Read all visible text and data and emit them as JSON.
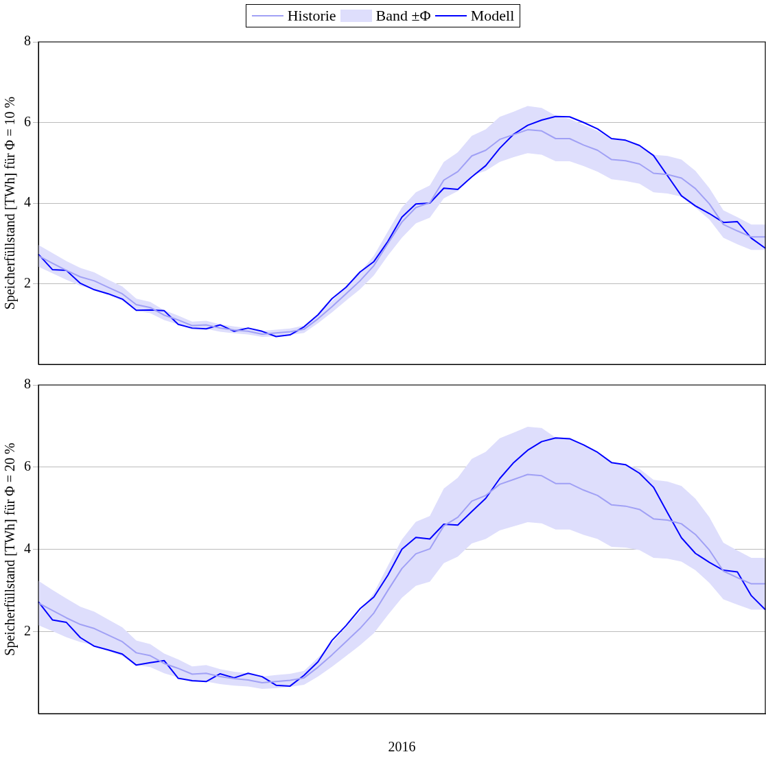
{
  "chart_data": [
    {
      "type": "line",
      "ylabel": "Speicherfüllstand [TWh] für Φ = 10 %",
      "legend": "top",
      "grid": "y",
      "tick_labels": "y",
      "ylim": [
        0,
        8
      ],
      "yticks": [
        2,
        4,
        6,
        8
      ],
      "categories": [
        null,
        null,
        null,
        null,
        null,
        null,
        null,
        null,
        null,
        null,
        null,
        null,
        null,
        null,
        null,
        null,
        null,
        null,
        null,
        null,
        null,
        null,
        null,
        null,
        null,
        null,
        null,
        null,
        null,
        null,
        null,
        null,
        null,
        null,
        null,
        null,
        null,
        null,
        null,
        null,
        null,
        null,
        null,
        null,
        null,
        null,
        null,
        null,
        null,
        null,
        null,
        null,
        null
      ],
      "series": [
        {
          "name": "Historie",
          "color": "#a0a0f5",
          "values": [
            2.69,
            2.51,
            2.33,
            2.17,
            2.07,
            1.91,
            1.75,
            1.48,
            1.41,
            1.22,
            1.1,
            0.96,
            0.98,
            0.9,
            0.85,
            0.82,
            0.75,
            0.78,
            0.81,
            0.87,
            1.13,
            1.43,
            1.75,
            2.07,
            2.45,
            3.0,
            3.53,
            3.89,
            4.01,
            4.57,
            4.78,
            5.17,
            5.31,
            5.58,
            5.7,
            5.82,
            5.79,
            5.6,
            5.6,
            5.44,
            5.31,
            5.08,
            5.05,
            4.97,
            4.74,
            4.71,
            4.62,
            4.36,
            3.98,
            3.47,
            3.31,
            3.16,
            3.16
          ]
        },
        {
          "name": "Band ±Φ",
          "type": "area",
          "color": "#dedefc",
          "values": [
            null,
            null,
            null,
            null,
            null,
            null,
            null,
            null,
            null,
            null,
            null,
            null,
            null,
            null,
            null,
            null,
            null,
            null,
            null,
            null,
            null,
            null,
            null,
            null,
            null,
            null,
            null,
            null,
            null,
            null,
            null,
            null,
            null,
            null,
            null,
            null,
            null,
            null,
            null,
            null,
            null,
            null,
            null,
            null,
            null,
            null,
            null,
            null,
            null,
            null,
            null,
            null,
            null
          ],
          "lower": [
            2.42,
            2.26,
            2.1,
            1.95,
            1.86,
            1.72,
            1.58,
            1.33,
            1.27,
            1.1,
            0.99,
            0.86,
            0.88,
            0.81,
            0.77,
            0.74,
            0.68,
            0.7,
            0.73,
            0.78,
            1.02,
            1.29,
            1.58,
            1.86,
            2.21,
            2.7,
            3.14,
            3.5,
            3.64,
            4.12,
            4.3,
            4.69,
            4.8,
            5.02,
            5.14,
            5.24,
            5.2,
            5.04,
            5.04,
            4.92,
            4.78,
            4.59,
            4.55,
            4.48,
            4.27,
            4.24,
            4.16,
            3.89,
            3.59,
            3.14,
            2.98,
            2.84,
            2.84
          ],
          "upper": [
            2.96,
            2.76,
            2.56,
            2.39,
            2.28,
            2.1,
            1.93,
            1.63,
            1.55,
            1.34,
            1.21,
            1.06,
            1.08,
            0.99,
            0.94,
            0.9,
            0.83,
            0.86,
            0.89,
            0.96,
            1.24,
            1.57,
            1.93,
            2.28,
            2.7,
            3.3,
            3.89,
            4.27,
            4.44,
            5.02,
            5.26,
            5.67,
            5.83,
            6.14,
            6.27,
            6.41,
            6.36,
            6.17,
            6.09,
            5.94,
            5.79,
            5.59,
            5.55,
            5.43,
            5.2,
            5.17,
            5.08,
            4.8,
            4.37,
            3.82,
            3.65,
            3.47,
            3.47
          ]
        },
        {
          "name": "Modell",
          "color": "#0000ff",
          "values": [
            2.73,
            2.35,
            2.33,
            2.01,
            1.85,
            1.75,
            1.62,
            1.34,
            1.35,
            1.33,
            0.99,
            0.9,
            0.88,
            0.98,
            0.82,
            0.9,
            0.82,
            0.69,
            0.73,
            0.93,
            1.23,
            1.63,
            1.91,
            2.29,
            2.55,
            3.05,
            3.65,
            3.98,
            4.0,
            4.37,
            4.34,
            4.65,
            4.93,
            5.36,
            5.71,
            5.93,
            6.06,
            6.15,
            6.14,
            6.0,
            5.84,
            5.6,
            5.56,
            5.43,
            5.18,
            4.68,
            4.18,
            3.93,
            3.74,
            3.52,
            3.54,
            3.13,
            2.88
          ]
        }
      ]
    },
    {
      "type": "line",
      "ylabel": "Speicherfüllstand [TWh] für Φ = 20 %",
      "xlabel": "2016",
      "grid": "y",
      "tick_labels": "y",
      "ylim": [
        0,
        8
      ],
      "yticks": [
        2,
        4,
        6,
        8
      ],
      "categories": [
        null,
        null,
        null,
        null,
        null,
        null,
        null,
        null,
        null,
        null,
        null,
        null,
        null,
        null,
        null,
        null,
        null,
        null,
        null,
        null,
        null,
        null,
        null,
        null,
        null,
        null,
        null,
        null,
        null,
        null,
        null,
        null,
        null,
        null,
        null,
        null,
        null,
        null,
        null,
        null,
        null,
        null,
        null,
        null,
        null,
        null,
        null,
        null,
        null,
        null,
        null,
        null,
        null
      ],
      "series": [
        {
          "color": "#a0a0f5",
          "values": [
            2.69,
            2.51,
            2.33,
            2.17,
            2.07,
            1.91,
            1.75,
            1.48,
            1.41,
            1.22,
            1.1,
            0.96,
            0.98,
            0.9,
            0.85,
            0.82,
            0.75,
            0.78,
            0.81,
            0.87,
            1.13,
            1.43,
            1.75,
            2.07,
            2.45,
            3.0,
            3.53,
            3.89,
            4.01,
            4.57,
            4.78,
            5.17,
            5.31,
            5.58,
            5.7,
            5.82,
            5.79,
            5.6,
            5.6,
            5.44,
            5.31,
            5.08,
            5.05,
            4.97,
            4.74,
            4.71,
            4.62,
            4.36,
            3.98,
            3.47,
            3.31,
            3.16,
            3.16
          ]
        },
        {
          "type": "area",
          "color": "#dedefc",
          "values": [
            null,
            null,
            null,
            null,
            null,
            null,
            null,
            null,
            null,
            null,
            null,
            null,
            null,
            null,
            null,
            null,
            null,
            null,
            null,
            null,
            null,
            null,
            null,
            null,
            null,
            null,
            null,
            null,
            null,
            null,
            null,
            null,
            null,
            null,
            null,
            null,
            null,
            null,
            null,
            null,
            null,
            null,
            null,
            null,
            null,
            null,
            null,
            null,
            null,
            null,
            null,
            null,
            null
          ],
          "lower": [
            2.15,
            2.01,
            1.86,
            1.74,
            1.66,
            1.53,
            1.4,
            1.18,
            1.13,
            0.98,
            0.88,
            0.77,
            0.78,
            0.72,
            0.68,
            0.66,
            0.6,
            0.62,
            0.65,
            0.7,
            0.9,
            1.14,
            1.4,
            1.66,
            1.96,
            2.4,
            2.82,
            3.11,
            3.21,
            3.66,
            3.82,
            4.14,
            4.25,
            4.46,
            4.56,
            4.66,
            4.63,
            4.48,
            4.48,
            4.35,
            4.25,
            4.06,
            4.04,
            3.98,
            3.79,
            3.77,
            3.7,
            3.49,
            3.18,
            2.78,
            2.65,
            2.53,
            2.53
          ],
          "upper": [
            3.23,
            3.01,
            2.8,
            2.6,
            2.48,
            2.29,
            2.1,
            1.78,
            1.69,
            1.46,
            1.32,
            1.15,
            1.18,
            1.08,
            1.02,
            0.98,
            0.9,
            0.94,
            0.97,
            1.04,
            1.36,
            1.72,
            2.1,
            2.48,
            2.94,
            3.6,
            4.24,
            4.67,
            4.81,
            5.48,
            5.74,
            6.2,
            6.37,
            6.7,
            6.84,
            6.98,
            6.95,
            6.72,
            6.72,
            6.53,
            6.37,
            6.1,
            6.06,
            5.96,
            5.69,
            5.65,
            5.54,
            5.23,
            4.78,
            4.16,
            3.97,
            3.79,
            3.79
          ]
        },
        {
          "color": "#0000ff",
          "values": [
            2.72,
            2.28,
            2.22,
            1.85,
            1.64,
            1.55,
            1.45,
            1.18,
            1.24,
            1.29,
            0.86,
            0.8,
            0.78,
            0.97,
            0.87,
            0.98,
            0.9,
            0.69,
            0.67,
            0.93,
            1.26,
            1.78,
            2.14,
            2.55,
            2.84,
            3.37,
            4.0,
            4.29,
            4.25,
            4.61,
            4.59,
            4.92,
            5.24,
            5.72,
            6.11,
            6.41,
            6.62,
            6.71,
            6.69,
            6.54,
            6.36,
            6.11,
            6.06,
            5.85,
            5.51,
            4.89,
            4.28,
            3.9,
            3.68,
            3.49,
            3.45,
            2.87,
            2.53
          ]
        }
      ]
    }
  ]
}
